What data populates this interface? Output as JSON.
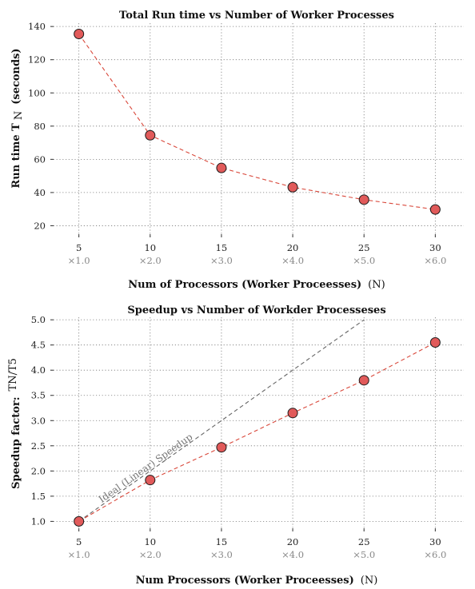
{
  "chart_data": [
    {
      "type": "line",
      "title": "Total Run time vs Number of Worker Processes",
      "xlabel": "Num of Processors (Worker Proceesses)",
      "xlabel_unit": "(N)",
      "ylabel": "Run time T",
      "ylabel_sub": "N",
      "ylabel_unit": "(seconds)",
      "x": [
        5,
        10,
        15,
        20,
        25,
        30
      ],
      "x_secondary_labels": [
        "×1.0",
        "×2.0",
        "×3.0",
        "×4.0",
        "×5.0",
        "×6.0"
      ],
      "series": [
        {
          "values": [
            135.5,
            74.5,
            54.8,
            43.2,
            35.7,
            29.8
          ]
        }
      ],
      "xlim": [
        3,
        32
      ],
      "ylim": [
        13,
        142
      ],
      "yticks": [
        20,
        40,
        60,
        80,
        100,
        120,
        140
      ],
      "grid": true,
      "colors": {
        "line": "#d9483b",
        "marker": "#e15a5a"
      }
    },
    {
      "type": "line",
      "title": "Speedup vs Number of Workder Processeses",
      "xlabel": "Num Processors (Worker Proceesses)",
      "xlabel_unit": "(N)",
      "ylabel": "Speedup factor:",
      "ylabel_frac": "TN/T5",
      "x": [
        5,
        10,
        15,
        20,
        25,
        30
      ],
      "x_secondary_labels": [
        "×1.0",
        "×2.0",
        "×3.0",
        "×4.0",
        "×5.0",
        "×6.0"
      ],
      "series": [
        {
          "values": [
            1.0,
            1.82,
            2.47,
            3.15,
            3.8,
            4.55
          ]
        }
      ],
      "ideal_line": {
        "x": [
          5,
          25
        ],
        "y": [
          1.0,
          5.0
        ],
        "label": "Ideal (Linear) Speedup"
      },
      "xlim": [
        3,
        32
      ],
      "ylim": [
        0.8,
        5.05
      ],
      "yticks": [
        1.0,
        1.5,
        2.0,
        2.5,
        3.0,
        3.5,
        4.0,
        4.5,
        5.0
      ],
      "grid": true,
      "colors": {
        "line": "#d9483b",
        "ideal": "#666666",
        "marker": "#e15a5a"
      }
    }
  ]
}
